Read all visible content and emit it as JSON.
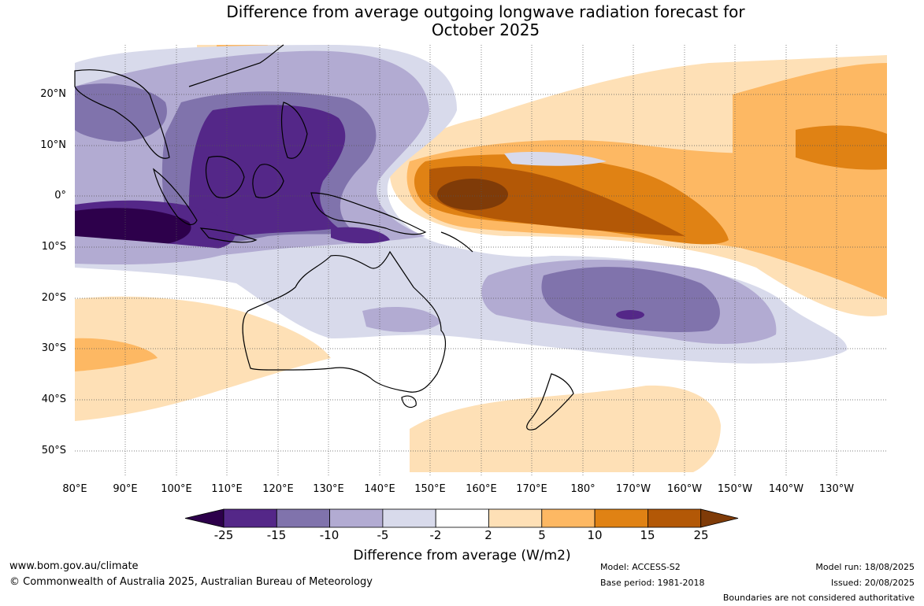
{
  "title_line1": "Difference from average outgoing longwave radiation forecast for",
  "title_line2": "October 2025",
  "lat_labels": [
    "20°N",
    "10°N",
    "0°",
    "10°S",
    "20°S",
    "30°S",
    "40°S",
    "50°S"
  ],
  "lon_labels": [
    "80°E",
    "90°E",
    "100°E",
    "110°E",
    "120°E",
    "130°E",
    "140°E",
    "150°E",
    "160°E",
    "170°E",
    "180°",
    "170°W",
    "160°W",
    "150°W",
    "140°W",
    "130°W"
  ],
  "colorbar": {
    "ticks": [
      "-25",
      "-15",
      "-10",
      "-5",
      "-2",
      "2",
      "5",
      "10",
      "15",
      "25"
    ],
    "colors": [
      "#2d004b",
      "#542788",
      "#8073ac",
      "#b2abd2",
      "#d8daeb",
      "#ffffff",
      "#fee0b6",
      "#fdb863",
      "#e08214",
      "#b35806",
      "#7f3b08"
    ],
    "title": "Difference from average (W/m2)"
  },
  "footer": {
    "website": "www.bom.gov.au/climate",
    "copyright": "© Commonwealth of Australia 2025, Australian Bureau of Meteorology",
    "model": "Model: ACCESS-S2",
    "base_period": "Base period: 1981-2018",
    "model_run": "Model run: 18/08/2025",
    "issued": "Issued: 20/08/2025",
    "disclaimer": "Boundaries are not considered authoritative"
  }
}
